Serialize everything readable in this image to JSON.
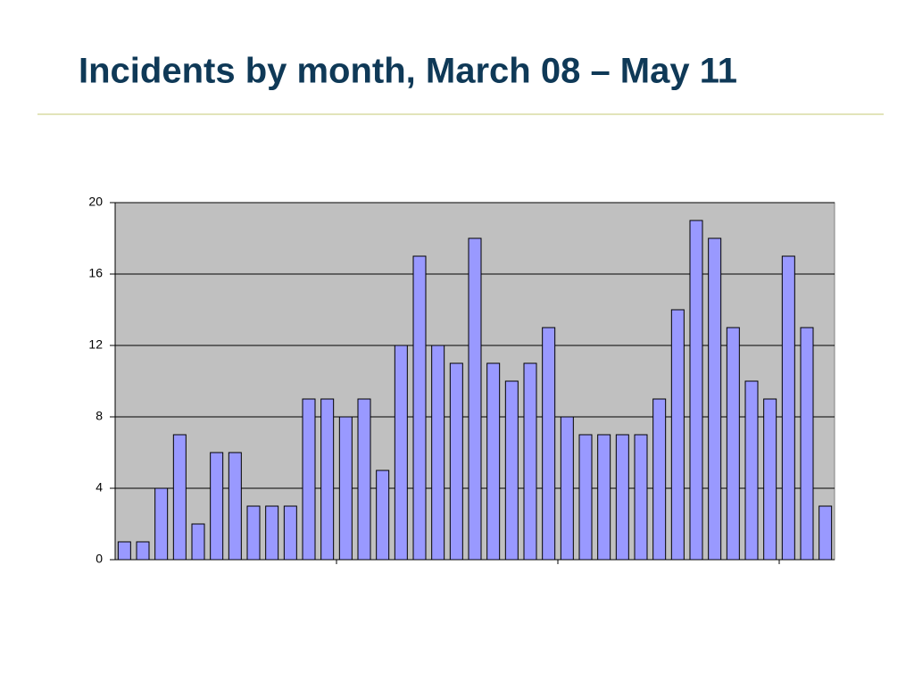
{
  "chart_data": {
    "type": "bar",
    "title": "Incidents by month, March 08 – May 11",
    "categories": [
      null,
      null,
      null,
      null,
      null,
      null,
      null,
      null,
      null,
      null,
      null,
      null,
      null,
      null,
      null,
      null,
      null,
      null,
      null,
      null,
      null,
      null,
      null,
      null,
      null,
      null,
      null,
      null,
      null,
      null,
      null,
      null,
      null,
      null,
      null,
      null,
      null,
      null,
      null
    ],
    "values": [
      1,
      1,
      4,
      7,
      2,
      6,
      6,
      3,
      3,
      3,
      9,
      9,
      8,
      9,
      5,
      12,
      17,
      12,
      11,
      18,
      11,
      10,
      11,
      13,
      8,
      7,
      7,
      7,
      7,
      9,
      14,
      19,
      18,
      13,
      10,
      9,
      17,
      13,
      3
    ],
    "color": "#9999ff",
    "ylim": [
      0,
      20
    ],
    "yticks": [
      0,
      4,
      8,
      12,
      16,
      20
    ],
    "grid": true
  }
}
